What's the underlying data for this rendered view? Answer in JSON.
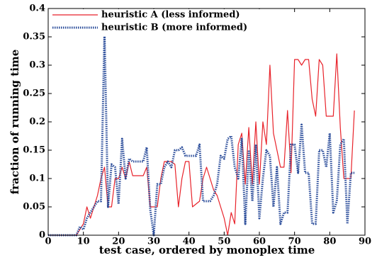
{
  "chart_data": {
    "type": "line",
    "xlabel": "test case, ordered by monoplex time",
    "ylabel": "fraction of running time",
    "x": [
      0,
      1,
      2,
      3,
      4,
      5,
      6,
      7,
      8,
      9,
      10,
      11,
      12,
      13,
      14,
      15,
      16,
      17,
      18,
      19,
      20,
      21,
      22,
      23,
      24,
      25,
      26,
      27,
      28,
      29,
      30,
      31,
      32,
      33,
      34,
      35,
      36,
      37,
      38,
      39,
      40,
      41,
      42,
      43,
      44,
      45,
      46,
      47,
      48,
      49,
      50,
      51,
      52,
      53,
      54,
      55,
      56,
      57,
      58,
      59,
      60,
      61,
      62,
      63,
      64,
      65,
      66,
      67,
      68,
      69,
      70,
      71,
      72,
      73,
      74,
      75,
      76,
      77,
      78,
      79,
      80,
      81,
      82,
      83,
      84,
      85,
      86,
      87
    ],
    "series": [
      {
        "name": "heuristic A (less informed)",
        "color": "#e8222a",
        "dash": false,
        "values": [
          0,
          0,
          0,
          0,
          0,
          0,
          0,
          0,
          0,
          0.01,
          0.02,
          0.05,
          0.03,
          0.05,
          0.07,
          0.1,
          0.12,
          0.05,
          0.05,
          0.1,
          0.1,
          0.12,
          0.1,
          0.13,
          0.105,
          0.105,
          0.105,
          0.105,
          0.12,
          0.05,
          0.05,
          0.05,
          0.1,
          0.13,
          0.13,
          0.13,
          0.125,
          0.05,
          0.1,
          0.13,
          0.13,
          0.05,
          0.055,
          0.06,
          0.1,
          0.12,
          0.1,
          0.08,
          0.07,
          0.05,
          0.03,
          0,
          0.04,
          0.02,
          0.16,
          0.18,
          0.09,
          0.19,
          0.09,
          0.2,
          0.09,
          0.2,
          0.16,
          0.3,
          0.18,
          0.15,
          0.12,
          0.12,
          0.22,
          0.11,
          0.31,
          0.31,
          0.3,
          0.31,
          0.31,
          0.24,
          0.21,
          0.31,
          0.3,
          0.21,
          0.21,
          0.21,
          0.32,
          0.19,
          0.1,
          0.1,
          0.1,
          0.22
        ]
      },
      {
        "name": "heuristic B (more informed)",
        "color": "#2a4c9a",
        "dash": true,
        "values": [
          0,
          0,
          0,
          0,
          0,
          0,
          0,
          0,
          0,
          0.015,
          0.01,
          0.03,
          0.04,
          0.05,
          0.06,
          0.06,
          0.36,
          0.05,
          0.125,
          0.12,
          0.055,
          0.17,
          0.1,
          0.135,
          0.13,
          0.13,
          0.13,
          0.13,
          0.155,
          0.045,
          0,
          0.09,
          0.09,
          0.12,
          0.13,
          0.12,
          0.15,
          0.15,
          0.155,
          0.14,
          0.14,
          0.14,
          0.14,
          0.16,
          0.06,
          0.06,
          0.06,
          0.07,
          0.09,
          0.14,
          0.135,
          0.17,
          0.175,
          0.12,
          0.1,
          0.17,
          0.02,
          0.15,
          0.06,
          0.16,
          0.03,
          0.1,
          0.15,
          0.14,
          0.05,
          0.12,
          0.02,
          0.04,
          0.04,
          0.16,
          0.16,
          0.11,
          0.195,
          0.11,
          0.11,
          0.02,
          0.02,
          0.15,
          0.15,
          0.12,
          0.18,
          0.04,
          0.06,
          0.16,
          0.17,
          0.02,
          0.11,
          0.11
        ]
      }
    ],
    "xlim": [
      0,
      90
    ],
    "xticks": [
      0,
      10,
      20,
      30,
      40,
      50,
      60,
      70,
      80,
      90
    ],
    "ylim": [
      0,
      0.4
    ],
    "yticks": [
      0,
      0.05,
      0.1,
      0.15,
      0.2,
      0.25,
      0.3,
      0.35,
      0.4
    ],
    "grid": false,
    "legend": "upper left"
  }
}
